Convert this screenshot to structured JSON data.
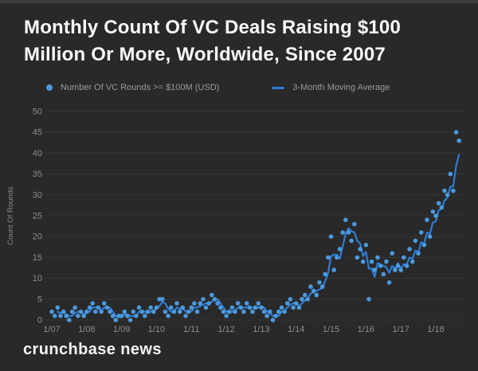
{
  "page": {
    "background": "#292929",
    "top_strip_color": "#3e3e3e",
    "title_color": "#fafafa",
    "dot_color": "#4b99dc",
    "line_color": "#2e7cd4",
    "grid_color": "rgba(255,255,255,0.06)",
    "axis_text_color": "#8d8d8d",
    "legend_text_color": "#9a9a9a"
  },
  "header": {
    "title": "Monthly Count Of VC Deals Raising $100 Million Or More, Worldwide, Since 2007"
  },
  "legend": {
    "items": [
      {
        "label": "Number Of VC Rounds >= $100M (USD)",
        "marker": "dot"
      },
      {
        "label": "3-Month Moving Average",
        "marker": "line"
      }
    ]
  },
  "footer": {
    "brand": "crunchbase news"
  },
  "chart_data": {
    "type": "scatter",
    "title": "Monthly Count Of VC Deals Raising $100 Million Or More, Worldwide, Since 2007",
    "xlabel": "",
    "ylabel": "Count Of Rounds",
    "ylim": [
      0,
      50
    ],
    "y_ticks": [
      0,
      5,
      10,
      15,
      20,
      25,
      30,
      35,
      40,
      45,
      50
    ],
    "x_tick_labels": [
      "1/07",
      "1/08",
      "1/09",
      "1/10",
      "1/11",
      "1/12",
      "1/13",
      "1/14",
      "1/15",
      "1/16",
      "1/17",
      "1/18"
    ],
    "months_per_tick": 12,
    "x_start_month": "2007-01",
    "x_end_month": "2018-09",
    "grid": "horizontal",
    "legend_position": "top",
    "series": [
      {
        "name": "Number Of VC Rounds >= $100M (USD)",
        "render": "scatter",
        "values": [
          2,
          1,
          3,
          1,
          2,
          1,
          0,
          2,
          3,
          1,
          2,
          1,
          2,
          3,
          4,
          2,
          3,
          2,
          4,
          3,
          2,
          1,
          0,
          1,
          1,
          2,
          1,
          0,
          2,
          1,
          3,
          2,
          1,
          2,
          3,
          2,
          3,
          5,
          5,
          2,
          1,
          3,
          2,
          4,
          2,
          3,
          1,
          2,
          3,
          4,
          2,
          4,
          5,
          3,
          4,
          6,
          5,
          4,
          3,
          2,
          1,
          2,
          3,
          2,
          4,
          3,
          2,
          4,
          3,
          2,
          3,
          4,
          3,
          2,
          1,
          2,
          0,
          1,
          2,
          3,
          2,
          4,
          5,
          3,
          4,
          3,
          5,
          6,
          5,
          8,
          7,
          6,
          9,
          8,
          11,
          15,
          20,
          12,
          15,
          17,
          21,
          24,
          21,
          19,
          23,
          15,
          17,
          14,
          18,
          5,
          14,
          12,
          15,
          13,
          11,
          14,
          9,
          16,
          12,
          13,
          12,
          15,
          13,
          17,
          14,
          19,
          16,
          21,
          18,
          24,
          20,
          26,
          25,
          28,
          27,
          31,
          30,
          35,
          31,
          45,
          43
        ]
      },
      {
        "name": "3-Month Moving Average",
        "render": "line",
        "derived_from": "trailing 3-month mean of the scatter series"
      }
    ]
  }
}
